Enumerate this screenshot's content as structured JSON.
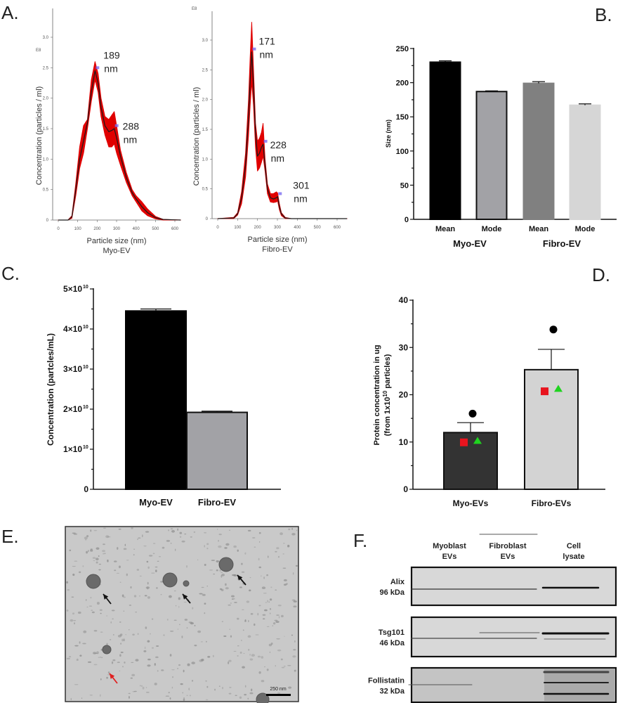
{
  "panel_letters": {
    "A": "A.",
    "B": "B.",
    "C": "C.",
    "D": "D.",
    "E": "E.",
    "F": "F."
  },
  "colors": {
    "curve_band": "#e00000",
    "curve_line": "#1a1a1a",
    "marker": "#7a6cf0",
    "square": "#e8141e",
    "triangle": "#1fd31f"
  },
  "chart_data": [
    {
      "id": "A1",
      "type": "line",
      "title": "Myo-EV",
      "xlabel": "Particle size (nm)",
      "ylabel": "Concentration (particles / ml)",
      "y_multiplier": "E8",
      "xlim": [
        0,
        630
      ],
      "ylim": [
        0,
        3.3
      ],
      "xticks": [
        0,
        100,
        200,
        300,
        400,
        500,
        600
      ],
      "yticks": [
        "0",
        "0.5",
        "1.0",
        "1.5",
        "2.0",
        "2.5",
        "3.0"
      ],
      "x": [
        0,
        50,
        70,
        90,
        110,
        130,
        150,
        170,
        189,
        205,
        220,
        240,
        260,
        275,
        288,
        300,
        320,
        350,
        380,
        400,
        430,
        460,
        500,
        540,
        630
      ],
      "y": [
        0,
        0,
        0.05,
        0.5,
        1.0,
        1.3,
        1.6,
        2.1,
        2.45,
        2.25,
        1.85,
        1.55,
        1.45,
        1.47,
        1.5,
        1.35,
        1.05,
        0.7,
        0.45,
        0.35,
        0.22,
        0.12,
        0.04,
        0.01,
        0
      ],
      "upper": [
        0,
        0,
        0.07,
        0.6,
        1.2,
        1.55,
        1.65,
        2.3,
        2.6,
        2.4,
        2.0,
        1.7,
        1.65,
        1.72,
        1.78,
        1.55,
        1.15,
        0.78,
        0.5,
        0.4,
        0.3,
        0.18,
        0.06,
        0.01,
        0
      ],
      "lower": [
        0,
        0,
        0.03,
        0.4,
        0.85,
        1.1,
        1.5,
        1.95,
        2.3,
        2.1,
        1.7,
        1.4,
        1.2,
        1.2,
        1.25,
        1.1,
        0.9,
        0.62,
        0.4,
        0.3,
        0.15,
        0.07,
        0.02,
        0,
        0
      ],
      "peaks": [
        {
          "x": 189,
          "y": 2.5,
          "label": "189",
          "unit": "nm"
        },
        {
          "x": 288,
          "y": 1.55,
          "label": "288",
          "unit": "nm"
        }
      ]
    },
    {
      "id": "A2",
      "type": "line",
      "title": "Fibro-EV",
      "xlabel": "Particle size (nm)",
      "ylabel": "Concentration (particles / ml)",
      "y_multiplier": "E8",
      "xlim": [
        0,
        650
      ],
      "ylim": [
        0,
        3.3
      ],
      "xticks": [
        0,
        100,
        200,
        300,
        400,
        500,
        600
      ],
      "yticks": [
        "0",
        "0.5",
        "1.0",
        "1.5",
        "2.0",
        "2.5",
        "3.0"
      ],
      "x": [
        0,
        80,
        100,
        120,
        140,
        155,
        163,
        171,
        180,
        190,
        200,
        210,
        220,
        228,
        238,
        250,
        265,
        280,
        295,
        301,
        310,
        320,
        340,
        370,
        650
      ],
      "y": [
        0,
        0.01,
        0.08,
        0.35,
        0.9,
        1.7,
        2.3,
        2.8,
        2.2,
        1.45,
        1.05,
        1.1,
        1.2,
        1.25,
        0.9,
        0.5,
        0.35,
        0.33,
        0.35,
        0.37,
        0.2,
        0.08,
        0.01,
        0,
        0
      ],
      "upper": [
        0,
        0.02,
        0.1,
        0.45,
        1.1,
        2.0,
        2.7,
        3.3,
        2.5,
        1.6,
        1.3,
        1.35,
        1.45,
        1.6,
        1.0,
        0.58,
        0.42,
        0.42,
        0.45,
        0.43,
        0.25,
        0.1,
        0.02,
        0,
        0
      ],
      "lower": [
        0,
        0,
        0.06,
        0.25,
        0.7,
        1.4,
        1.9,
        2.3,
        1.9,
        1.2,
        0.8,
        0.85,
        0.95,
        1.05,
        0.8,
        0.42,
        0.28,
        0.27,
        0.28,
        0.3,
        0.15,
        0.05,
        0,
        0,
        0
      ],
      "peaks": [
        {
          "x": 171,
          "y": 2.85,
          "label": "171",
          "unit": "nm"
        },
        {
          "x": 228,
          "y": 1.3,
          "label": "228",
          "unit": "nm"
        },
        {
          "x": 301,
          "y": 0.42,
          "label": "301",
          "unit": "nm"
        }
      ]
    },
    {
      "id": "B",
      "type": "bar",
      "ylabel": "Size (nm)",
      "ylim": [
        0,
        250
      ],
      "yticks": [
        "0",
        "50",
        "100",
        "150",
        "200",
        "250"
      ],
      "categories": [
        "Mean",
        "Mode",
        "Mean",
        "Mode"
      ],
      "groups": [
        "Myo-EV",
        "Fibro-EV"
      ],
      "values": [
        230,
        187,
        199,
        167
      ],
      "errors": [
        2,
        1,
        2.5,
        2
      ],
      "bar_colors": [
        "#000000",
        "#a2a2a6",
        "#808080",
        "#d6d6d6"
      ]
    },
    {
      "id": "C",
      "type": "bar",
      "ylabel": "Concentration (partcles/mL)",
      "ylim": [
        0,
        50000000000.0
      ],
      "yticks": [
        "0",
        "1×10",
        "2×10",
        "3×10",
        "4×10",
        "5×10"
      ],
      "ytick_exponent": "10",
      "categories": [
        "Myo-EV",
        "Fibro-EV"
      ],
      "values": [
        44500000000.0,
        19200000000.0
      ],
      "errors": [
        500000000.0,
        300000000.0
      ],
      "bar_colors": [
        "#000000",
        "#a2a2a6"
      ]
    },
    {
      "id": "D",
      "type": "bar",
      "ylabel": "Protein concentration in ug",
      "ylabel2_prefix": "(from 1x10",
      "ylabel2_exp": "10",
      "ylabel2_suffix": " particles)",
      "ylim": [
        0,
        40
      ],
      "yticks": [
        "0",
        "10",
        "20",
        "30",
        "40"
      ],
      "categories": [
        "Myo-EVs",
        "Fibro-EVs"
      ],
      "values": [
        12.0,
        25.3
      ],
      "errors": [
        2.1,
        4.3
      ],
      "bar_colors": [
        "#333333",
        "#d3d3d3"
      ],
      "points": [
        {
          "circle": 16.0,
          "square": 10.0,
          "triangle": 10.2
        },
        {
          "circle": 33.8,
          "square": 20.8,
          "triangle": 21.2
        }
      ]
    }
  ],
  "panel_e": {
    "scale_bar": "250 nm"
  },
  "panel_f": {
    "lanes": [
      {
        "l1": "Myoblast",
        "l2": "EVs"
      },
      {
        "l1": "Fibroblast",
        "l2": "EVs"
      },
      {
        "l1": "Cell",
        "l2": "lysate"
      }
    ],
    "blots": [
      {
        "name": "Alix",
        "kda": "96 kDa"
      },
      {
        "name": "Tsg101",
        "kda": "46 kDa"
      },
      {
        "name": "Follistatin",
        "kda": "32 kDa"
      }
    ]
  }
}
